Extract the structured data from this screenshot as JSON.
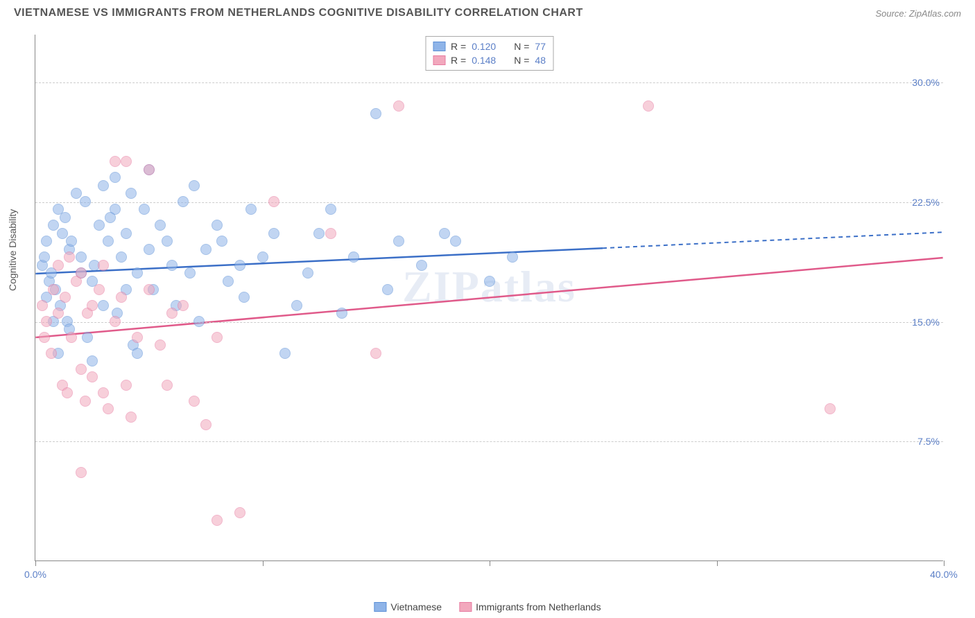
{
  "title": "VIETNAMESE VS IMMIGRANTS FROM NETHERLANDS COGNITIVE DISABILITY CORRELATION CHART",
  "source": "Source: ZipAtlas.com",
  "ylabel": "Cognitive Disability",
  "watermark": "ZIPatlas",
  "chart": {
    "type": "scatter",
    "xlim": [
      0,
      40
    ],
    "ylim": [
      0,
      33
    ],
    "yticks": [
      7.5,
      15.0,
      22.5,
      30.0
    ],
    "ytick_labels": [
      "7.5%",
      "15.0%",
      "22.5%",
      "30.0%"
    ],
    "xticks": [
      0,
      10,
      20,
      30,
      40
    ],
    "xtick_labels_shown": {
      "0": "0.0%",
      "40": "40.0%"
    },
    "background_color": "#ffffff",
    "grid_color": "#cccccc",
    "axis_color": "#888888",
    "label_color": "#5b7fc7",
    "point_radius": 8,
    "point_opacity": 0.55,
    "series": [
      {
        "name": "Vietnamese",
        "color_fill": "#8fb4e8",
        "color_stroke": "#5b8fd6",
        "R": "0.120",
        "N": "77",
        "trend": {
          "x1": 0,
          "y1": 18.0,
          "x2": 25,
          "y2": 19.6,
          "x2_dash": 40,
          "y2_dash": 20.6,
          "color": "#3b6fc7",
          "width": 2.5
        },
        "points": [
          [
            0.3,
            18.5
          ],
          [
            0.5,
            20.0
          ],
          [
            0.4,
            19.0
          ],
          [
            0.6,
            17.5
          ],
          [
            0.8,
            21.0
          ],
          [
            0.5,
            16.5
          ],
          [
            1.0,
            22.0
          ],
          [
            0.7,
            18.0
          ],
          [
            1.2,
            20.5
          ],
          [
            0.9,
            17.0
          ],
          [
            1.5,
            19.5
          ],
          [
            1.3,
            21.5
          ],
          [
            1.8,
            23.0
          ],
          [
            1.1,
            16.0
          ],
          [
            2.0,
            18.0
          ],
          [
            1.6,
            20.0
          ],
          [
            2.2,
            22.5
          ],
          [
            1.4,
            15.0
          ],
          [
            2.5,
            17.5
          ],
          [
            2.0,
            19.0
          ],
          [
            2.8,
            21.0
          ],
          [
            2.3,
            14.0
          ],
          [
            3.0,
            23.5
          ],
          [
            2.6,
            18.5
          ],
          [
            3.2,
            20.0
          ],
          [
            3.5,
            22.0
          ],
          [
            3.0,
            16.0
          ],
          [
            3.8,
            19.0
          ],
          [
            3.3,
            21.5
          ],
          [
            4.0,
            17.0
          ],
          [
            4.2,
            23.0
          ],
          [
            3.6,
            15.5
          ],
          [
            4.5,
            18.0
          ],
          [
            4.0,
            20.5
          ],
          [
            4.8,
            22.0
          ],
          [
            4.3,
            13.5
          ],
          [
            5.0,
            19.5
          ],
          [
            5.5,
            21.0
          ],
          [
            5.2,
            17.0
          ],
          [
            6.0,
            18.5
          ],
          [
            5.8,
            20.0
          ],
          [
            6.5,
            22.5
          ],
          [
            6.2,
            16.0
          ],
          [
            7.0,
            23.5
          ],
          [
            6.8,
            18.0
          ],
          [
            7.5,
            19.5
          ],
          [
            7.2,
            15.0
          ],
          [
            8.0,
            21.0
          ],
          [
            8.5,
            17.5
          ],
          [
            8.2,
            20.0
          ],
          [
            9.0,
            18.5
          ],
          [
            9.5,
            22.0
          ],
          [
            9.2,
            16.5
          ],
          [
            10.0,
            19.0
          ],
          [
            10.5,
            20.5
          ],
          [
            11.0,
            13.0
          ],
          [
            11.5,
            16.0
          ],
          [
            12.0,
            18.0
          ],
          [
            12.5,
            20.5
          ],
          [
            13.0,
            22.0
          ],
          [
            13.5,
            15.5
          ],
          [
            14.0,
            19.0
          ],
          [
            15.0,
            28.0
          ],
          [
            15.5,
            17.0
          ],
          [
            16.0,
            20.0
          ],
          [
            17.0,
            18.5
          ],
          [
            18.0,
            20.5
          ],
          [
            18.5,
            20.0
          ],
          [
            20.0,
            17.5
          ],
          [
            21.0,
            19.0
          ],
          [
            1.0,
            13.0
          ],
          [
            2.5,
            12.5
          ],
          [
            3.5,
            24.0
          ],
          [
            4.5,
            13.0
          ],
          [
            5.0,
            24.5
          ],
          [
            1.5,
            14.5
          ],
          [
            0.8,
            15.0
          ]
        ]
      },
      {
        "name": "Immigrants from Netherlands",
        "color_fill": "#f2a8bd",
        "color_stroke": "#e77aa0",
        "R": "0.148",
        "N": "48",
        "trend": {
          "x1": 0,
          "y1": 14.0,
          "x2": 40,
          "y2": 19.0,
          "x2_dash": 40,
          "y2_dash": 19.0,
          "color": "#e05a8a",
          "width": 2.5
        },
        "points": [
          [
            0.3,
            16.0
          ],
          [
            0.5,
            15.0
          ],
          [
            0.8,
            17.0
          ],
          [
            0.4,
            14.0
          ],
          [
            1.0,
            18.5
          ],
          [
            0.7,
            13.0
          ],
          [
            1.3,
            16.5
          ],
          [
            1.0,
            15.5
          ],
          [
            1.5,
            19.0
          ],
          [
            1.2,
            11.0
          ],
          [
            1.8,
            17.5
          ],
          [
            1.6,
            14.0
          ],
          [
            2.0,
            18.0
          ],
          [
            1.4,
            10.5
          ],
          [
            2.3,
            15.5
          ],
          [
            2.0,
            12.0
          ],
          [
            2.5,
            16.0
          ],
          [
            2.2,
            10.0
          ],
          [
            2.8,
            17.0
          ],
          [
            2.5,
            11.5
          ],
          [
            3.0,
            18.5
          ],
          [
            3.2,
            9.5
          ],
          [
            3.5,
            15.0
          ],
          [
            3.0,
            10.5
          ],
          [
            3.8,
            16.5
          ],
          [
            4.0,
            11.0
          ],
          [
            4.5,
            14.0
          ],
          [
            4.2,
            9.0
          ],
          [
            5.0,
            17.0
          ],
          [
            5.5,
            13.5
          ],
          [
            6.0,
            15.5
          ],
          [
            5.8,
            11.0
          ],
          [
            6.5,
            16.0
          ],
          [
            7.0,
            10.0
          ],
          [
            7.5,
            8.5
          ],
          [
            8.0,
            14.0
          ],
          [
            2.0,
            5.5
          ],
          [
            3.5,
            25.0
          ],
          [
            5.0,
            24.5
          ],
          [
            8.0,
            2.5
          ],
          [
            10.5,
            22.5
          ],
          [
            13.0,
            20.5
          ],
          [
            15.0,
            13.0
          ],
          [
            16.0,
            28.5
          ],
          [
            27.0,
            28.5
          ],
          [
            9.0,
            3.0
          ],
          [
            35.0,
            9.5
          ],
          [
            4.0,
            25.0
          ]
        ]
      }
    ]
  },
  "legend_bottom": [
    {
      "label": "Vietnamese",
      "fill": "#8fb4e8",
      "stroke": "#5b8fd6"
    },
    {
      "label": "Immigrants from Netherlands",
      "fill": "#f2a8bd",
      "stroke": "#e77aa0"
    }
  ]
}
